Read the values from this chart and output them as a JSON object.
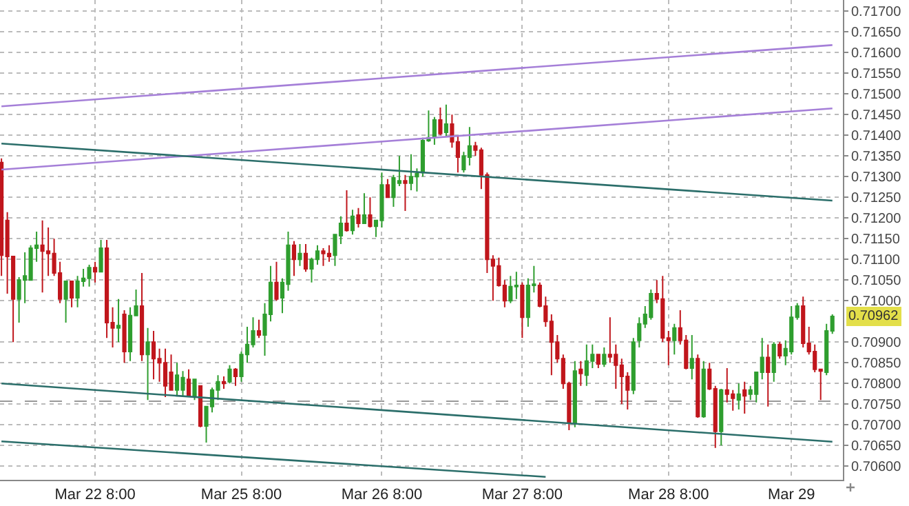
{
  "chart_data": {
    "type": "candlestick",
    "categories": [
      null,
      null,
      null,
      null,
      null,
      null,
      null,
      null,
      null,
      null,
      null,
      null,
      null,
      null,
      null,
      null,
      "Mar 22 8:00",
      null,
      null,
      null,
      null,
      null,
      null,
      null,
      null,
      null,
      null,
      null,
      null,
      null,
      null,
      null,
      null,
      null,
      null,
      null,
      null,
      null,
      null,
      null,
      null,
      "Mar 25 8:00",
      null,
      null,
      null,
      null,
      null,
      null,
      null,
      null,
      null,
      null,
      null,
      null,
      null,
      null,
      null,
      null,
      null,
      null,
      null,
      null,
      null,
      null,
      null,
      "Mar 26 8:00",
      null,
      null,
      null,
      null,
      null,
      null,
      null,
      null,
      null,
      null,
      null,
      null,
      null,
      null,
      null,
      null,
      null,
      null,
      null,
      null,
      null,
      null,
      null,
      "Mar 27 8:00",
      null,
      null,
      null,
      null,
      null,
      null,
      null,
      null,
      null,
      null,
      null,
      null,
      null,
      null,
      null,
      null,
      null,
      null,
      null,
      null,
      null,
      null,
      null,
      null,
      "Mar 28 8:00",
      null,
      null,
      null,
      null,
      null,
      null,
      null,
      null,
      null,
      null,
      null,
      null,
      null,
      null,
      null,
      null,
      null,
      null,
      null,
      null,
      "Mar 29",
      null,
      null,
      null,
      null,
      null,
      null,
      null
    ],
    "ohlc": [
      [
        0.71334,
        0.71344,
        0.7106,
        0.7111
      ],
      [
        0.71194,
        0.71214,
        0.71017,
        0.71107
      ],
      [
        0.71107,
        0.71107,
        0.709,
        0.71004
      ],
      [
        0.71004,
        0.71057,
        0.70947,
        0.7105
      ],
      [
        0.7105,
        0.71117,
        0.70994,
        0.7106
      ],
      [
        0.7105,
        0.71134,
        0.7105,
        0.71127
      ],
      [
        0.71127,
        0.71167,
        0.71094,
        0.71134
      ],
      [
        0.71134,
        0.71194,
        0.7102,
        0.7112
      ],
      [
        0.7112,
        0.71177,
        0.7106,
        0.71114
      ],
      [
        0.71114,
        0.7115,
        0.7106,
        0.71067
      ],
      [
        0.71067,
        0.71094,
        0.70994,
        0.71004
      ],
      [
        0.71004,
        0.71047,
        0.70947,
        0.71047
      ],
      [
        0.71047,
        0.71047,
        0.70984,
        0.71007
      ],
      [
        0.71007,
        0.7106,
        0.70984,
        0.71047
      ],
      [
        0.71047,
        0.71077,
        0.71034,
        0.71054
      ],
      [
        0.71054,
        0.71087,
        0.71034,
        0.7108
      ],
      [
        0.7108,
        0.71094,
        0.71044,
        0.7107
      ],
      [
        0.7107,
        0.71147,
        0.7107,
        0.71127
      ],
      [
        0.71127,
        0.71147,
        0.7091,
        0.70947
      ],
      [
        0.70947,
        0.70984,
        0.70887,
        0.70934
      ],
      [
        0.70934,
        0.71004,
        0.709,
        0.7094
      ],
      [
        0.70967,
        0.70977,
        0.7085,
        0.70877
      ],
      [
        0.70877,
        0.70984,
        0.70854,
        0.70964
      ],
      [
        0.70964,
        0.71027,
        0.70964,
        0.70987
      ],
      [
        0.70987,
        0.71067,
        0.70854,
        0.7087
      ],
      [
        0.7087,
        0.70934,
        0.7076,
        0.709
      ],
      [
        0.709,
        0.70927,
        0.7081,
        0.7086
      ],
      [
        0.7086,
        0.70884,
        0.70804,
        0.7085
      ],
      [
        0.7085,
        0.70884,
        0.70767,
        0.70794
      ],
      [
        0.70827,
        0.7087,
        0.70784,
        0.70784
      ],
      [
        0.70784,
        0.7085,
        0.7077,
        0.7082
      ],
      [
        0.70784,
        0.7083,
        0.7077,
        0.70814
      ],
      [
        0.7081,
        0.70834,
        0.70767,
        0.7077
      ],
      [
        0.7077,
        0.7081,
        0.7076,
        0.7081
      ],
      [
        0.70794,
        0.70794,
        0.70694,
        0.70697
      ],
      [
        0.70697,
        0.70744,
        0.70657,
        0.70744
      ],
      [
        0.70744,
        0.7079,
        0.7073,
        0.70784
      ],
      [
        0.70784,
        0.7082,
        0.7076,
        0.70804
      ],
      [
        0.70804,
        0.70817,
        0.70787,
        0.708
      ],
      [
        0.70804,
        0.70844,
        0.708,
        0.70834
      ],
      [
        0.70834,
        0.70837,
        0.70794,
        0.70817
      ],
      [
        0.70817,
        0.70877,
        0.70804,
        0.7087
      ],
      [
        0.7087,
        0.70937,
        0.7085,
        0.70894
      ],
      [
        0.70894,
        0.7096,
        0.70887,
        0.70927
      ],
      [
        0.70927,
        0.70954,
        0.7091,
        0.70917
      ],
      [
        0.70917,
        0.70994,
        0.70867,
        0.70967
      ],
      [
        0.70967,
        0.71084,
        0.7095,
        0.71044
      ],
      [
        0.71044,
        0.71094,
        0.71,
        0.71004
      ],
      [
        0.71007,
        0.71054,
        0.7097,
        0.71044
      ],
      [
        0.7104,
        0.71167,
        0.71024,
        0.71134
      ],
      [
        0.71134,
        0.71144,
        0.7106,
        0.711
      ],
      [
        0.711,
        0.71137,
        0.71084,
        0.71114
      ],
      [
        0.71114,
        0.71137,
        0.7107,
        0.71077
      ],
      [
        0.71077,
        0.71104,
        0.71044,
        0.711
      ],
      [
        0.711,
        0.71134,
        0.71087,
        0.7112
      ],
      [
        0.7112,
        0.71127,
        0.71084,
        0.71114
      ],
      [
        0.71114,
        0.71134,
        0.71094,
        0.71107
      ],
      [
        0.7111,
        0.7116,
        0.71084,
        0.7116
      ],
      [
        0.71157,
        0.71204,
        0.71137,
        0.71187
      ],
      [
        0.71187,
        0.71267,
        0.71167,
        0.7117
      ],
      [
        0.7117,
        0.7122,
        0.7116,
        0.71204
      ],
      [
        0.71207,
        0.71224,
        0.71177,
        0.71187
      ],
      [
        0.71187,
        0.7126,
        0.71187,
        0.71207
      ],
      [
        0.71207,
        0.7125,
        0.71177,
        0.7118
      ],
      [
        0.7118,
        0.71194,
        0.71154,
        0.71194
      ],
      [
        0.71194,
        0.7131,
        0.71177,
        0.7128
      ],
      [
        0.7128,
        0.71294,
        0.7125,
        0.7125
      ],
      [
        0.7125,
        0.71304,
        0.71227,
        0.71297
      ],
      [
        0.71284,
        0.7135,
        0.71277,
        0.7129
      ],
      [
        0.7129,
        0.71304,
        0.71217,
        0.71284
      ],
      [
        0.71284,
        0.71354,
        0.71267,
        0.713
      ],
      [
        0.713,
        0.7132,
        0.71264,
        0.71307
      ],
      [
        0.7131,
        0.71394,
        0.713,
        0.71387
      ],
      [
        0.71387,
        0.7146,
        0.71384,
        0.71394
      ],
      [
        0.71397,
        0.71444,
        0.71377,
        0.71437
      ],
      [
        0.71437,
        0.71467,
        0.714,
        0.71404
      ],
      [
        0.71407,
        0.71474,
        0.71397,
        0.71427
      ],
      [
        0.71427,
        0.7145,
        0.7137,
        0.71384
      ],
      [
        0.71384,
        0.714,
        0.7131,
        0.71347
      ],
      [
        0.71317,
        0.7136,
        0.7131,
        0.7135
      ],
      [
        0.71347,
        0.7142,
        0.71327,
        0.71374
      ],
      [
        0.71374,
        0.71384,
        0.7135,
        0.71364
      ],
      [
        0.71364,
        0.7137,
        0.7127,
        0.71304
      ],
      [
        0.71304,
        0.7131,
        0.71067,
        0.711
      ],
      [
        0.711,
        0.7111,
        0.71,
        0.71084
      ],
      [
        0.71084,
        0.71104,
        0.71034,
        0.71037
      ],
      [
        0.71037,
        0.7105,
        0.70984,
        0.71
      ],
      [
        0.71,
        0.7106,
        0.70994,
        0.71034
      ],
      [
        0.71034,
        0.7107,
        0.71004,
        0.71037
      ],
      [
        0.71037,
        0.71044,
        0.7091,
        0.7096
      ],
      [
        0.7096,
        0.71054,
        0.70937,
        0.71037
      ],
      [
        0.71037,
        0.71084,
        0.7102,
        0.7104
      ],
      [
        0.71037,
        0.71044,
        0.70984,
        0.70987
      ],
      [
        0.70987,
        0.7101,
        0.70937,
        0.7095
      ],
      [
        0.7095,
        0.70967,
        0.7082,
        0.709
      ],
      [
        0.709,
        0.70917,
        0.7085,
        0.7086
      ],
      [
        0.7086,
        0.7087,
        0.70787,
        0.708
      ],
      [
        0.708,
        0.70804,
        0.70687,
        0.70704
      ],
      [
        0.70704,
        0.70854,
        0.70694,
        0.7083
      ],
      [
        0.70834,
        0.70854,
        0.70794,
        0.70824
      ],
      [
        0.7082,
        0.70894,
        0.70794,
        0.70854
      ],
      [
        0.70854,
        0.70894,
        0.70837,
        0.7087
      ],
      [
        0.7087,
        0.7087,
        0.70837,
        0.70847
      ],
      [
        0.70847,
        0.70887,
        0.7084,
        0.7087
      ],
      [
        0.7087,
        0.7096,
        0.7085,
        0.70864
      ],
      [
        0.7087,
        0.70894,
        0.70787,
        0.70844
      ],
      [
        0.70844,
        0.7086,
        0.7075,
        0.70817
      ],
      [
        0.70817,
        0.70827,
        0.70737,
        0.70784
      ],
      [
        0.70784,
        0.7091,
        0.70774,
        0.709
      ],
      [
        0.70904,
        0.7096,
        0.70887,
        0.70944
      ],
      [
        0.70944,
        0.70987,
        0.70934,
        0.70967
      ],
      [
        0.7096,
        0.71027,
        0.70954,
        0.71017
      ],
      [
        0.71017,
        0.7105,
        0.70994,
        0.71004
      ],
      [
        0.71004,
        0.7106,
        0.709,
        0.7091
      ],
      [
        0.7091,
        0.70927,
        0.70844,
        0.70904
      ],
      [
        0.70904,
        0.70944,
        0.7087,
        0.70934
      ],
      [
        0.70934,
        0.70977,
        0.70894,
        0.70904
      ],
      [
        0.70904,
        0.70917,
        0.70834,
        0.70837
      ],
      [
        0.70837,
        0.70917,
        0.7081,
        0.7086
      ],
      [
        0.7086,
        0.7087,
        0.70717,
        0.7072
      ],
      [
        0.7072,
        0.70854,
        0.70717,
        0.70834
      ],
      [
        0.70834,
        0.7085,
        0.70784,
        0.70787
      ],
      [
        0.70787,
        0.70794,
        0.70644,
        0.70684
      ],
      [
        0.70684,
        0.70787,
        0.7065,
        0.70784
      ],
      [
        0.70784,
        0.70837,
        0.70754,
        0.70774
      ],
      [
        0.70774,
        0.70784,
        0.70734,
        0.70764
      ],
      [
        0.7076,
        0.708,
        0.70737,
        0.70774
      ],
      [
        0.70784,
        0.70804,
        0.70727,
        0.7077
      ],
      [
        0.70774,
        0.70794,
        0.7076,
        0.70784
      ],
      [
        0.70774,
        0.70827,
        0.70754,
        0.70827
      ],
      [
        0.70827,
        0.7091,
        0.7081,
        0.70863
      ],
      [
        0.70863,
        0.70894,
        0.70744,
        0.70827
      ],
      [
        0.70827,
        0.709,
        0.70804,
        0.70894
      ],
      [
        0.70894,
        0.709,
        0.7086,
        0.70867
      ],
      [
        0.70867,
        0.70904,
        0.70844,
        0.70884
      ],
      [
        0.70877,
        0.70987,
        0.7087,
        0.7096
      ],
      [
        0.7096,
        0.70994,
        0.70954,
        0.70987
      ],
      [
        0.70987,
        0.7101,
        0.70887,
        0.70897
      ],
      [
        0.70897,
        0.70937,
        0.7087,
        0.70877
      ],
      [
        0.70877,
        0.70894,
        0.70827,
        0.70834
      ],
      [
        0.70834,
        0.70834,
        0.7076,
        0.7083
      ],
      [
        0.70827,
        0.70944,
        0.7082,
        0.70927
      ],
      [
        0.70927,
        0.70967,
        0.7092,
        0.70962
      ]
    ],
    "colors": [
      "#c0161c",
      "#c0161c",
      "#c0161c",
      "#2f9e2f",
      "#2f9e2f",
      "#2f9e2f",
      "#2f9e2f",
      "#c0161c",
      "#c0161c",
      "#c0161c",
      "#c0161c",
      "#2f9e2f",
      "#c0161c",
      "#2f9e2f",
      "#2f9e2f",
      "#2f9e2f",
      "#c0161c",
      "#2f9e2f",
      "#c0161c",
      "#c0161c",
      "#2f9e2f",
      "#c0161c",
      "#2f9e2f",
      "#2f9e2f",
      "#c0161c",
      "#2f9e2f",
      "#c0161c",
      "#c0161c",
      "#c0161c",
      "#c0161c",
      "#2f9e2f",
      "#2f9e2f",
      "#c0161c",
      "#2f9e2f",
      "#c0161c",
      "#2f9e2f",
      "#2f9e2f",
      "#2f9e2f",
      "#c0161c",
      "#2f9e2f",
      "#c0161c",
      "#2f9e2f",
      "#2f9e2f",
      "#2f9e2f",
      "#c0161c",
      "#2f9e2f",
      "#2f9e2f",
      "#c0161c",
      "#2f9e2f",
      "#2f9e2f",
      "#c0161c",
      "#2f9e2f",
      "#c0161c",
      "#2f9e2f",
      "#2f9e2f",
      "#c0161c",
      "#c0161c",
      "#2f9e2f",
      "#2f9e2f",
      "#c0161c",
      "#2f9e2f",
      "#c0161c",
      "#2f9e2f",
      "#c0161c",
      "#2f9e2f",
      "#2f9e2f",
      "#c0161c",
      "#2f9e2f",
      "#2f9e2f",
      "#c0161c",
      "#2f9e2f",
      "#2f9e2f",
      "#2f9e2f",
      "#2f9e2f",
      "#2f9e2f",
      "#c0161c",
      "#2f9e2f",
      "#c0161c",
      "#c0161c",
      "#2f9e2f",
      "#2f9e2f",
      "#c0161c",
      "#c0161c",
      "#c0161c",
      "#c0161c",
      "#c0161c",
      "#c0161c",
      "#2f9e2f",
      "#2f9e2f",
      "#c0161c",
      "#2f9e2f",
      "#2f9e2f",
      "#c0161c",
      "#c0161c",
      "#c0161c",
      "#c0161c",
      "#c0161c",
      "#c0161c",
      "#2f9e2f",
      "#c0161c",
      "#2f9e2f",
      "#2f9e2f",
      "#c0161c",
      "#2f9e2f",
      "#c0161c",
      "#c0161c",
      "#c0161c",
      "#c0161c",
      "#2f9e2f",
      "#2f9e2f",
      "#2f9e2f",
      "#2f9e2f",
      "#c0161c",
      "#c0161c",
      "#c0161c",
      "#2f9e2f",
      "#c0161c",
      "#c0161c",
      "#2f9e2f",
      "#c0161c",
      "#2f9e2f",
      "#c0161c",
      "#c0161c",
      "#2f9e2f",
      "#c0161c",
      "#c0161c",
      "#2f9e2f",
      "#c0161c",
      "#2f9e2f",
      "#2f9e2f",
      "#2f9e2f",
      "#c0161c",
      "#2f9e2f",
      "#c0161c",
      "#2f9e2f",
      "#2f9e2f",
      "#2f9e2f",
      "#c0161c",
      "#c0161c",
      "#c0161c",
      "#c0161c",
      "#2f9e2f",
      "#2f9e2f"
    ],
    "series": [
      {
        "type": "line",
        "color": "#a57fd8",
        "values": [
          0.7147,
          null,
          null,
          null,
          null,
          null,
          null,
          null,
          null,
          null,
          null,
          null,
          null,
          null,
          null,
          null,
          null,
          null,
          null,
          null,
          null,
          null,
          null,
          null,
          null,
          null,
          null,
          null,
          null,
          null,
          null,
          null,
          null,
          null,
          null,
          null,
          null,
          null,
          null,
          null,
          null,
          null,
          null,
          null,
          null,
          null,
          null,
          null,
          null,
          null,
          null,
          null,
          null,
          null,
          null,
          null,
          null,
          null,
          null,
          null,
          null,
          null,
          null,
          null,
          null,
          null,
          null,
          null,
          null,
          null,
          null,
          null,
          null,
          null,
          null,
          null,
          null,
          null,
          null,
          null,
          null,
          null,
          null,
          null,
          null,
          null,
          null,
          null,
          null,
          null,
          null,
          null,
          null,
          null,
          null,
          null,
          null,
          null,
          null,
          null,
          null,
          null,
          null,
          null,
          null,
          null,
          null,
          null,
          null,
          null,
          null,
          null,
          null,
          null,
          null,
          null,
          null,
          null,
          null,
          null,
          null,
          null,
          null,
          null,
          null,
          null,
          null,
          null,
          null,
          null,
          null,
          null,
          null,
          null,
          null,
          null,
          null,
          null,
          null,
          null,
          null,
          null,
          0.71618
        ]
      },
      {
        "type": "line",
        "color": "#a57fd8",
        "values": [
          0.71317,
          null,
          null,
          null,
          null,
          null,
          null,
          null,
          null,
          null,
          null,
          null,
          null,
          null,
          null,
          null,
          null,
          null,
          null,
          null,
          null,
          null,
          null,
          null,
          null,
          null,
          null,
          null,
          null,
          null,
          null,
          null,
          null,
          null,
          null,
          null,
          null,
          null,
          null,
          null,
          null,
          null,
          null,
          null,
          null,
          null,
          null,
          null,
          null,
          null,
          null,
          null,
          null,
          null,
          null,
          null,
          null,
          null,
          null,
          null,
          null,
          null,
          null,
          null,
          null,
          null,
          null,
          null,
          null,
          null,
          null,
          null,
          null,
          null,
          null,
          null,
          null,
          null,
          null,
          null,
          null,
          null,
          null,
          null,
          null,
          null,
          null,
          null,
          null,
          null,
          null,
          null,
          null,
          null,
          null,
          null,
          null,
          null,
          null,
          null,
          null,
          null,
          null,
          null,
          null,
          null,
          null,
          null,
          null,
          null,
          null,
          null,
          null,
          null,
          null,
          null,
          null,
          null,
          null,
          null,
          null,
          null,
          null,
          null,
          null,
          null,
          null,
          null,
          null,
          null,
          null,
          null,
          null,
          null,
          null,
          null,
          null,
          null,
          null,
          null,
          null,
          null,
          0.71465
        ]
      },
      {
        "type": "line",
        "color": "#2b6e6a",
        "values": [
          0.7138,
          null,
          null,
          null,
          null,
          null,
          null,
          null,
          null,
          null,
          null,
          null,
          null,
          null,
          null,
          null,
          null,
          null,
          null,
          null,
          null,
          null,
          null,
          null,
          null,
          null,
          null,
          null,
          null,
          null,
          null,
          null,
          null,
          null,
          null,
          null,
          null,
          null,
          null,
          null,
          null,
          null,
          null,
          null,
          null,
          null,
          null,
          null,
          null,
          null,
          null,
          null,
          null,
          null,
          null,
          null,
          null,
          null,
          null,
          null,
          null,
          null,
          null,
          null,
          null,
          null,
          null,
          null,
          null,
          null,
          null,
          null,
          null,
          null,
          null,
          null,
          null,
          null,
          null,
          null,
          null,
          null,
          null,
          null,
          null,
          null,
          null,
          null,
          null,
          null,
          null,
          null,
          null,
          null,
          null,
          null,
          null,
          null,
          null,
          null,
          null,
          null,
          null,
          null,
          null,
          null,
          null,
          null,
          null,
          null,
          null,
          null,
          null,
          null,
          null,
          null,
          null,
          null,
          null,
          null,
          null,
          null,
          null,
          null,
          null,
          null,
          null,
          null,
          null,
          null,
          null,
          null,
          null,
          null,
          null,
          null,
          null,
          null,
          null,
          null,
          null,
          null,
          0.71242
        ]
      },
      {
        "type": "line",
        "color": "#2b6e6a",
        "values": [
          0.708,
          null,
          null,
          null,
          null,
          null,
          null,
          null,
          null,
          null,
          null,
          null,
          null,
          null,
          null,
          null,
          null,
          null,
          null,
          null,
          null,
          null,
          null,
          null,
          null,
          null,
          null,
          null,
          null,
          null,
          null,
          null,
          null,
          null,
          null,
          null,
          null,
          null,
          null,
          null,
          null,
          null,
          null,
          null,
          null,
          null,
          null,
          null,
          null,
          null,
          null,
          null,
          null,
          null,
          null,
          null,
          null,
          null,
          null,
          null,
          null,
          null,
          null,
          null,
          null,
          null,
          null,
          null,
          null,
          null,
          null,
          null,
          null,
          null,
          null,
          null,
          null,
          null,
          null,
          null,
          null,
          null,
          null,
          null,
          null,
          null,
          null,
          null,
          null,
          null,
          null,
          null,
          null,
          null,
          null,
          null,
          null,
          null,
          null,
          null,
          null,
          null,
          null,
          null,
          null,
          null,
          null,
          null,
          null,
          null,
          null,
          null,
          null,
          null,
          null,
          null,
          null,
          null,
          null,
          null,
          null,
          null,
          null,
          null,
          null,
          null,
          null,
          null,
          null,
          null,
          null,
          null,
          null,
          null,
          null,
          null,
          null,
          null,
          null,
          null,
          null,
          null,
          0.70659
        ]
      },
      {
        "type": "line",
        "color": "#2b6e6a",
        "values": [
          0.7066,
          null,
          null,
          null,
          null,
          null,
          null,
          null,
          null,
          null,
          null,
          null,
          null,
          null,
          null,
          null,
          null,
          null,
          null,
          null,
          null,
          null,
          null,
          null,
          null,
          null,
          null,
          null,
          null,
          null,
          null,
          null,
          null,
          null,
          null,
          null,
          null,
          null,
          null,
          null,
          null,
          null,
          null,
          null,
          null,
          null,
          null,
          null,
          null,
          null,
          null,
          null,
          null,
          null,
          null,
          null,
          null,
          null,
          null,
          null,
          null,
          null,
          null,
          null,
          null,
          null,
          null,
          null,
          null,
          null,
          null,
          null,
          null,
          null,
          null,
          null,
          null,
          null,
          null,
          null,
          null,
          null,
          null,
          null,
          null,
          null,
          null,
          null,
          null,
          null,
          null,
          null,
          null,
          0.70574,
          null,
          null,
          null,
          null,
          null,
          null,
          null,
          null,
          null,
          null,
          null,
          null,
          null,
          null,
          null,
          null,
          null,
          null,
          null,
          null,
          null,
          null,
          null,
          null,
          null,
          null,
          null,
          null,
          null,
          null,
          null,
          null,
          null,
          null,
          null,
          null,
          null,
          null,
          null,
          null,
          null,
          null,
          null,
          null,
          null,
          null,
          null,
          null,
          null
        ]
      }
    ],
    "ylim": [
      0.70567,
      0.71727
    ],
    "yticks": [
      {
        "value": 0.706,
        "label": "0.70600"
      },
      {
        "value": 0.7065,
        "label": "0.70650"
      },
      {
        "value": 0.707,
        "label": "0.70700"
      },
      {
        "value": 0.7075,
        "label": "0.70750"
      },
      {
        "value": 0.708,
        "label": "0.70800"
      },
      {
        "value": 0.7085,
        "label": "0.70850"
      },
      {
        "value": 0.709,
        "label": "0.70900"
      },
      {
        "value": 0.71,
        "label": "0.71000"
      },
      {
        "value": 0.7105,
        "label": "0.71050"
      },
      {
        "value": 0.711,
        "label": "0.71100"
      },
      {
        "value": 0.7115,
        "label": "0.71150"
      },
      {
        "value": 0.712,
        "label": "0.71200"
      },
      {
        "value": 0.7125,
        "label": "0.71250"
      },
      {
        "value": 0.713,
        "label": "0.71300"
      },
      {
        "value": 0.7135,
        "label": "0.71350"
      },
      {
        "value": 0.714,
        "label": "0.71400"
      },
      {
        "value": 0.7145,
        "label": "0.71450"
      },
      {
        "value": 0.715,
        "label": "0.71500"
      },
      {
        "value": 0.7155,
        "label": "0.71550"
      },
      {
        "value": 0.716,
        "label": "0.71600"
      },
      {
        "value": 0.7165,
        "label": "0.71650"
      },
      {
        "value": 0.717,
        "label": "0.71700"
      }
    ],
    "ref_lines": [
      {
        "axis": "y",
        "value": 0.70757,
        "color": "#999999",
        "line_style": "dashed"
      }
    ],
    "annotations": [
      {
        "text": "0.70962",
        "y": 0.70962
      }
    ],
    "grid": true,
    "line_style": "solid"
  }
}
